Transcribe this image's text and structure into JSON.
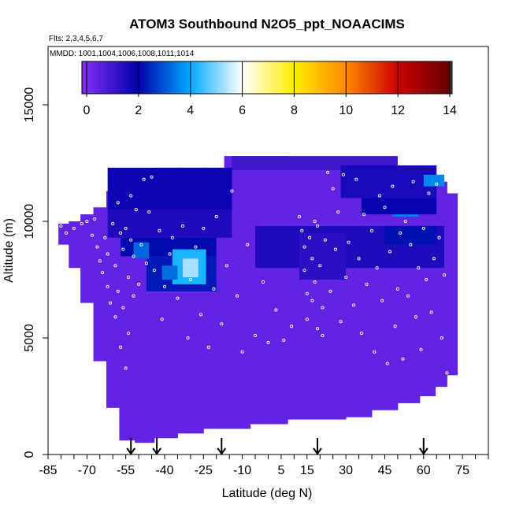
{
  "chart_data": {
    "type": "heatmap",
    "title": "ATOM3 Southbound N2O5_ppt_NOAACIMS",
    "subtitle_flights": "Flts: 2,3,4,5,6,7",
    "subtitle_dates": "MMDD: 1001,1004,1006,1008,1011,1014",
    "xlabel": "Latitude (deg N)",
    "ylabel": "Altitude (m)",
    "xlim": [
      -85,
      85
    ],
    "ylim": [
      0,
      17500
    ],
    "x_ticks": [
      -85,
      -70,
      -55,
      -40,
      -25,
      -10,
      5,
      15,
      30,
      45,
      60,
      75
    ],
    "y_ticks": [
      0,
      5000,
      10000,
      15000
    ],
    "colorbar": {
      "min": 0,
      "max": 14,
      "ticks": [
        0,
        2,
        4,
        6,
        8,
        10,
        12,
        14
      ],
      "colors": [
        "#7b2df0",
        "#0000aa",
        "#00aaff",
        "#ffffff",
        "#ffee00",
        "#ff8800",
        "#cc0000",
        "#660000"
      ]
    },
    "background_value": 0.4,
    "envelope": [
      {
        "lat": -79,
        "min_alt": 9000,
        "max_alt": 9900
      },
      {
        "lat": -75,
        "min_alt": 8000,
        "max_alt": 10000
      },
      {
        "lat": -70,
        "min_alt": 6500,
        "max_alt": 10300
      },
      {
        "lat": -65,
        "min_alt": 4000,
        "max_alt": 10600
      },
      {
        "lat": -60,
        "min_alt": 2000,
        "max_alt": 11300
      },
      {
        "lat": -55,
        "min_alt": 600,
        "max_alt": 11500
      },
      {
        "lat": -48,
        "min_alt": 500,
        "max_alt": 12000
      },
      {
        "lat": -40,
        "min_alt": 700,
        "max_alt": 12300
      },
      {
        "lat": -30,
        "min_alt": 900,
        "max_alt": 12300
      },
      {
        "lat": -20,
        "min_alt": 1100,
        "max_alt": 12300
      },
      {
        "lat": -14,
        "min_alt": 1100,
        "max_alt": 12800
      },
      {
        "lat": 0,
        "min_alt": 1300,
        "max_alt": 12800
      },
      {
        "lat": 15,
        "min_alt": 1500,
        "max_alt": 12700
      },
      {
        "lat": 25,
        "min_alt": 1500,
        "max_alt": 12600
      },
      {
        "lat": 35,
        "min_alt": 1600,
        "max_alt": 12500
      },
      {
        "lat": 45,
        "min_alt": 1900,
        "max_alt": 12400
      },
      {
        "lat": 55,
        "min_alt": 2200,
        "max_alt": 12300
      },
      {
        "lat": 62,
        "min_alt": 2500,
        "max_alt": 12000
      },
      {
        "lat": 67,
        "min_alt": 2900,
        "max_alt": 11700
      },
      {
        "lat": 71,
        "min_alt": 3400,
        "max_alt": 11200
      }
    ],
    "patches": [
      {
        "lat": [
          -62,
          -14
        ],
        "alt": [
          10500,
          12300
        ],
        "value": 1.8
      },
      {
        "lat": [
          -62,
          -14
        ],
        "alt": [
          9300,
          10500
        ],
        "value": 1.5
      },
      {
        "lat": [
          -57,
          -20
        ],
        "alt": [
          8500,
          9300
        ],
        "value": 2.1
      },
      {
        "lat": [
          -47,
          -20
        ],
        "alt": [
          7000,
          8500
        ],
        "value": 2.3
      },
      {
        "lat": [
          -37,
          -24
        ],
        "alt": [
          7300,
          8800
        ],
        "value": 4.2
      },
      {
        "lat": [
          -33,
          -27
        ],
        "alt": [
          7600,
          8400
        ],
        "value": 5.3
      },
      {
        "lat": [
          -41,
          -35
        ],
        "alt": [
          7500,
          8100
        ],
        "value": 3.3
      },
      {
        "lat": [
          -52,
          -46
        ],
        "alt": [
          8400,
          9100
        ],
        "value": 3.2
      },
      {
        "lat": [
          -14,
          50
        ],
        "alt": [
          12200,
          12800
        ],
        "value": 1.0
      },
      {
        "lat": [
          28,
          65
        ],
        "alt": [
          11000,
          12400
        ],
        "value": 1.6
      },
      {
        "lat": [
          60,
          68
        ],
        "alt": [
          11500,
          12000
        ],
        "value": 3.6
      },
      {
        "lat": [
          -5,
          68
        ],
        "alt": [
          8000,
          9800
        ],
        "value": 1.5
      },
      {
        "lat": [
          45,
          65
        ],
        "alt": [
          9000,
          9800
        ],
        "value": 2.2
      },
      {
        "lat": [
          48,
          58
        ],
        "alt": [
          10200,
          11000
        ],
        "value": 3.5
      },
      {
        "lat": [
          36,
          65
        ],
        "alt": [
          10300,
          11000
        ],
        "value": 1.9
      },
      {
        "lat": [
          12,
          30
        ],
        "alt": [
          7500,
          9500
        ],
        "value": 1.3
      }
    ],
    "profile_arrows_lat": [
      -53,
      -43,
      -18,
      19,
      60
    ],
    "observation_points": [
      [
        -80,
        9800
      ],
      [
        -78,
        9500
      ],
      [
        -75,
        9700
      ],
      [
        -72,
        9900
      ],
      [
        -70,
        10000
      ],
      [
        -68,
        9400
      ],
      [
        -67,
        10100
      ],
      [
        -66,
        8900
      ],
      [
        -65,
        8300
      ],
      [
        -64,
        7800
      ],
      [
        -63,
        9300
      ],
      [
        -62,
        8600
      ],
      [
        -62,
        7200
      ],
      [
        -61,
        6500
      ],
      [
        -60,
        9900
      ],
      [
        -59,
        8100
      ],
      [
        -59,
        5900
      ],
      [
        -58,
        7000
      ],
      [
        -58,
        10800
      ],
      [
        -57,
        9500
      ],
      [
        -57,
        4600
      ],
      [
        -56,
        8800
      ],
      [
        -56,
        6300
      ],
      [
        -55,
        9700
      ],
      [
        -55,
        3700
      ],
      [
        -54,
        7600
      ],
      [
        -54,
        5200
      ],
      [
        -53,
        9200
      ],
      [
        -53,
        11100
      ],
      [
        -52,
        8500
      ],
      [
        -52,
        6800
      ],
      [
        -51,
        10500
      ],
      [
        -50,
        7300
      ],
      [
        -49,
        9000
      ],
      [
        -48,
        11800
      ],
      [
        -47,
        8200
      ],
      [
        -46,
        10400
      ],
      [
        -45,
        11900
      ],
      [
        -44,
        7900
      ],
      [
        -42,
        9600
      ],
      [
        -41,
        5800
      ],
      [
        -40,
        7200
      ],
      [
        -38,
        8600
      ],
      [
        -37,
        9300
      ],
      [
        -35,
        6700
      ],
      [
        -33,
        9800
      ],
      [
        -31,
        5000
      ],
      [
        -30,
        7500
      ],
      [
        -28,
        8900
      ],
      [
        -26,
        6000
      ],
      [
        -25,
        9700
      ],
      [
        -23,
        4600
      ],
      [
        -21,
        7100
      ],
      [
        -20,
        10200
      ],
      [
        -18,
        5600
      ],
      [
        -16,
        8100
      ],
      [
        -14,
        11300
      ],
      [
        -12,
        6800
      ],
      [
        -10,
        4400
      ],
      [
        -8,
        9000
      ],
      [
        -5,
        5100
      ],
      [
        -2,
        7400
      ],
      [
        0,
        4800
      ],
      [
        3,
        6200
      ],
      [
        6,
        4900
      ],
      [
        9,
        5500
      ],
      [
        12,
        10200
      ],
      [
        13,
        9600
      ],
      [
        14,
        8900
      ],
      [
        14,
        7900
      ],
      [
        15,
        6900
      ],
      [
        15,
        5800
      ],
      [
        16,
        9300
      ],
      [
        17,
        8400
      ],
      [
        17,
        6600
      ],
      [
        18,
        7400
      ],
      [
        18,
        10000
      ],
      [
        19,
        5400
      ],
      [
        19,
        9800
      ],
      [
        20,
        8100
      ],
      [
        21,
        6300
      ],
      [
        21,
        5100
      ],
      [
        22,
        9200
      ],
      [
        23,
        12100
      ],
      [
        24,
        7000
      ],
      [
        25,
        11400
      ],
      [
        26,
        8800
      ],
      [
        27,
        10400
      ],
      [
        28,
        5700
      ],
      [
        29,
        12000
      ],
      [
        30,
        7600
      ],
      [
        31,
        9100
      ],
      [
        33,
        6400
      ],
      [
        34,
        11800
      ],
      [
        35,
        8400
      ],
      [
        36,
        5200
      ],
      [
        37,
        10300
      ],
      [
        38,
        7300
      ],
      [
        40,
        9600
      ],
      [
        41,
        4400
      ],
      [
        42,
        8000
      ],
      [
        43,
        11100
      ],
      [
        44,
        6600
      ],
      [
        45,
        10600
      ],
      [
        46,
        3900
      ],
      [
        47,
        8700
      ],
      [
        48,
        11500
      ],
      [
        49,
        5500
      ],
      [
        50,
        7100
      ],
      [
        51,
        9500
      ],
      [
        52,
        4100
      ],
      [
        53,
        10000
      ],
      [
        54,
        6800
      ],
      [
        55,
        9000
      ],
      [
        56,
        11700
      ],
      [
        57,
        5900
      ],
      [
        58,
        8000
      ],
      [
        59,
        4500
      ],
      [
        60,
        9700
      ],
      [
        61,
        7500
      ],
      [
        62,
        11200
      ],
      [
        63,
        6100
      ],
      [
        64,
        8400
      ],
      [
        65,
        11600
      ],
      [
        66,
        9300
      ],
      [
        67,
        5000
      ],
      [
        68,
        7700
      ],
      [
        69,
        3500
      ]
    ]
  }
}
